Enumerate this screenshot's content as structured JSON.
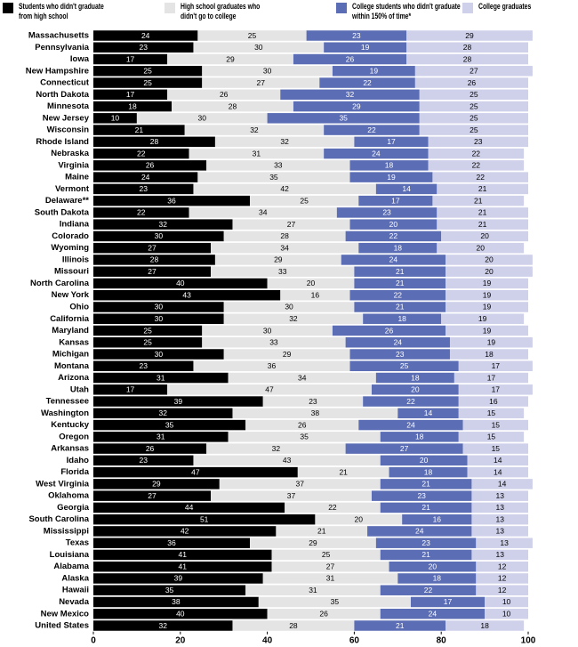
{
  "chart_data": {
    "type": "stacked_bar_horizontal",
    "categories": [
      "Massachusetts",
      "Pennsylvania",
      "Iowa",
      "New Hampshire",
      "Connecticut",
      "North Dakota",
      "Minnesota",
      "New Jersey",
      "Wisconsin",
      "Rhode Island",
      "Nebraska",
      "Virginia",
      "Maine",
      "Vermont",
      "Delaware**",
      "South Dakota",
      "Indiana",
      "Colorado",
      "Wyoming",
      "Illinois",
      "Missouri",
      "North Carolina",
      "New York",
      "Ohio",
      "California",
      "Maryland",
      "Kansas",
      "Michigan",
      "Montana",
      "Arizona",
      "Utah",
      "Tennessee",
      "Washington",
      "Kentucky",
      "Oregon",
      "Arkansas",
      "Idaho",
      "Florida",
      "West Virginia",
      "Oklahoma",
      "Georgia",
      "South Carolina",
      "Mississippi",
      "Texas",
      "Louisiana",
      "Alabama",
      "Alaska",
      "Hawaii",
      "Nevada",
      "New Mexico",
      "United States"
    ],
    "series": [
      {
        "name": "Students who didn't graduate from high school",
        "color": "#000000",
        "values": [
          24,
          23,
          17,
          25,
          25,
          17,
          18,
          10,
          21,
          28,
          22,
          26,
          24,
          23,
          36,
          22,
          32,
          30,
          27,
          28,
          27,
          40,
          43,
          30,
          30,
          25,
          25,
          30,
          23,
          31,
          17,
          39,
          32,
          35,
          31,
          26,
          23,
          47,
          29,
          27,
          44,
          51,
          42,
          36,
          41,
          41,
          39,
          35,
          38,
          40,
          32
        ]
      },
      {
        "name": "High school graduates who didn't go to college",
        "color": "#e4e4e4",
        "values": [
          25,
          30,
          29,
          30,
          27,
          26,
          28,
          30,
          32,
          32,
          31,
          33,
          35,
          42,
          25,
          34,
          27,
          28,
          34,
          29,
          33,
          20,
          16,
          30,
          32,
          30,
          33,
          29,
          36,
          34,
          47,
          23,
          38,
          26,
          35,
          32,
          43,
          21,
          37,
          37,
          22,
          20,
          21,
          29,
          25,
          27,
          31,
          31,
          35,
          26,
          28
        ]
      },
      {
        "name": "College students who didn't graduate within 150% of time*",
        "color": "#5b6db4",
        "values": [
          23,
          19,
          26,
          19,
          22,
          32,
          29,
          35,
          22,
          17,
          24,
          18,
          19,
          14,
          17,
          23,
          20,
          22,
          18,
          24,
          21,
          21,
          22,
          21,
          18,
          26,
          24,
          23,
          25,
          18,
          20,
          22,
          14,
          24,
          18,
          27,
          20,
          18,
          21,
          23,
          21,
          16,
          24,
          23,
          21,
          20,
          18,
          22,
          17,
          24,
          21
        ]
      },
      {
        "name": "College graduates",
        "color": "#cfd0ea",
        "values": [
          29,
          28,
          28,
          27,
          26,
          25,
          25,
          25,
          25,
          23,
          22,
          22,
          22,
          21,
          21,
          21,
          21,
          20,
          20,
          20,
          20,
          19,
          19,
          19,
          19,
          19,
          19,
          18,
          17,
          17,
          17,
          16,
          15,
          15,
          15,
          15,
          14,
          14,
          14,
          13,
          13,
          13,
          13,
          13,
          13,
          12,
          12,
          12,
          10,
          10,
          18
        ]
      }
    ],
    "xlim": [
      0,
      100
    ],
    "xticks": [
      0,
      20,
      40,
      60,
      80,
      100
    ]
  }
}
